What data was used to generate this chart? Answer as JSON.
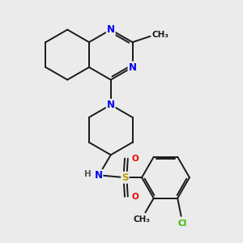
{
  "background_color": "#ebebeb",
  "bond_color": "#1a1a1a",
  "bond_width": 1.4,
  "atom_colors": {
    "N": "#0000ee",
    "S": "#b8a000",
    "O": "#ee0000",
    "Cl": "#33bb00",
    "C": "#1a1a1a",
    "H": "#555555"
  },
  "font_size_large": 8.5,
  "font_size_med": 7.5,
  "font_size_small": 7.0
}
